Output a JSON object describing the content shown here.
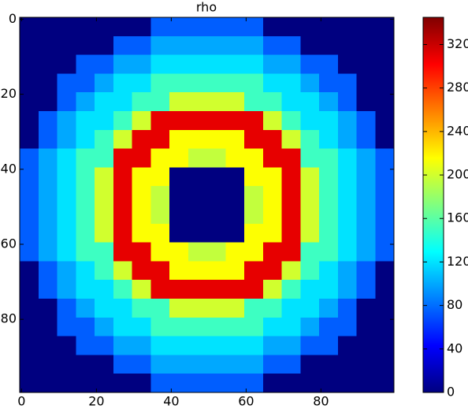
{
  "chart_data": {
    "type": "heatmap",
    "title": "rho",
    "colormap": "jet",
    "xlim": [
      -0.5,
      99.5
    ],
    "ylim": [
      99.5,
      -0.5
    ],
    "xticks": [
      0,
      20,
      40,
      60,
      80
    ],
    "yticks": [
      0,
      20,
      40,
      60,
      80
    ],
    "clim": [
      0,
      345
    ],
    "colorbar_ticks": [
      0,
      40,
      80,
      120,
      160,
      200,
      240,
      280,
      320
    ],
    "z": [
      [
        0,
        0,
        0,
        0,
        0,
        0,
        0,
        75,
        75,
        75,
        75,
        75,
        75,
        0,
        0,
        0,
        0,
        0,
        0,
        0
      ],
      [
        0,
        0,
        0,
        0,
        0,
        75,
        75,
        100,
        100,
        100,
        100,
        100,
        100,
        75,
        75,
        0,
        0,
        0,
        0,
        0
      ],
      [
        0,
        0,
        0,
        75,
        75,
        100,
        100,
        120,
        120,
        120,
        120,
        120,
        120,
        100,
        100,
        75,
        75,
        0,
        0,
        0
      ],
      [
        0,
        0,
        75,
        75,
        100,
        120,
        120,
        150,
        150,
        150,
        150,
        150,
        150,
        120,
        120,
        100,
        75,
        75,
        0,
        0
      ],
      [
        0,
        0,
        75,
        100,
        120,
        120,
        150,
        150,
        200,
        200,
        200,
        200,
        150,
        150,
        120,
        120,
        100,
        75,
        0,
        0
      ],
      [
        0,
        75,
        100,
        120,
        120,
        150,
        200,
        310,
        310,
        310,
        310,
        310,
        310,
        200,
        150,
        120,
        120,
        100,
        75,
        0
      ],
      [
        0,
        75,
        100,
        120,
        150,
        200,
        310,
        310,
        215,
        215,
        215,
        215,
        310,
        310,
        200,
        150,
        120,
        100,
        75,
        0
      ],
      [
        75,
        100,
        120,
        150,
        150,
        310,
        310,
        215,
        215,
        195,
        195,
        215,
        215,
        310,
        310,
        150,
        150,
        120,
        100,
        75
      ],
      [
        75,
        100,
        120,
        150,
        200,
        310,
        215,
        215,
        0,
        0,
        0,
        0,
        215,
        215,
        310,
        200,
        150,
        120,
        100,
        75
      ],
      [
        75,
        100,
        120,
        150,
        200,
        310,
        215,
        195,
        0,
        0,
        0,
        0,
        195,
        215,
        310,
        200,
        150,
        120,
        100,
        75
      ],
      [
        75,
        100,
        120,
        150,
        200,
        310,
        215,
        195,
        0,
        0,
        0,
        0,
        195,
        215,
        310,
        200,
        150,
        120,
        100,
        75
      ],
      [
        75,
        100,
        120,
        150,
        200,
        310,
        215,
        215,
        0,
        0,
        0,
        0,
        215,
        215,
        310,
        200,
        150,
        120,
        100,
        75
      ],
      [
        75,
        100,
        120,
        150,
        150,
        310,
        310,
        215,
        215,
        195,
        195,
        215,
        215,
        310,
        310,
        150,
        150,
        120,
        100,
        75
      ],
      [
        0,
        75,
        100,
        120,
        150,
        200,
        310,
        310,
        215,
        215,
        215,
        215,
        310,
        310,
        200,
        150,
        120,
        100,
        75,
        0
      ],
      [
        0,
        75,
        100,
        120,
        120,
        150,
        200,
        310,
        310,
        310,
        310,
        310,
        310,
        200,
        150,
        120,
        120,
        100,
        75,
        0
      ],
      [
        0,
        0,
        75,
        100,
        120,
        120,
        150,
        150,
        200,
        200,
        200,
        200,
        150,
        150,
        120,
        120,
        100,
        75,
        0,
        0
      ],
      [
        0,
        0,
        75,
        75,
        100,
        120,
        120,
        150,
        150,
        150,
        150,
        150,
        150,
        120,
        120,
        100,
        75,
        75,
        0,
        0
      ],
      [
        0,
        0,
        0,
        75,
        75,
        100,
        100,
        120,
        120,
        120,
        120,
        120,
        120,
        100,
        100,
        75,
        75,
        0,
        0,
        0
      ],
      [
        0,
        0,
        0,
        0,
        0,
        75,
        75,
        100,
        100,
        100,
        100,
        100,
        100,
        75,
        75,
        0,
        0,
        0,
        0,
        0
      ],
      [
        0,
        0,
        0,
        0,
        0,
        0,
        0,
        75,
        75,
        75,
        75,
        75,
        75,
        0,
        0,
        0,
        0,
        0,
        0,
        0
      ]
    ]
  }
}
